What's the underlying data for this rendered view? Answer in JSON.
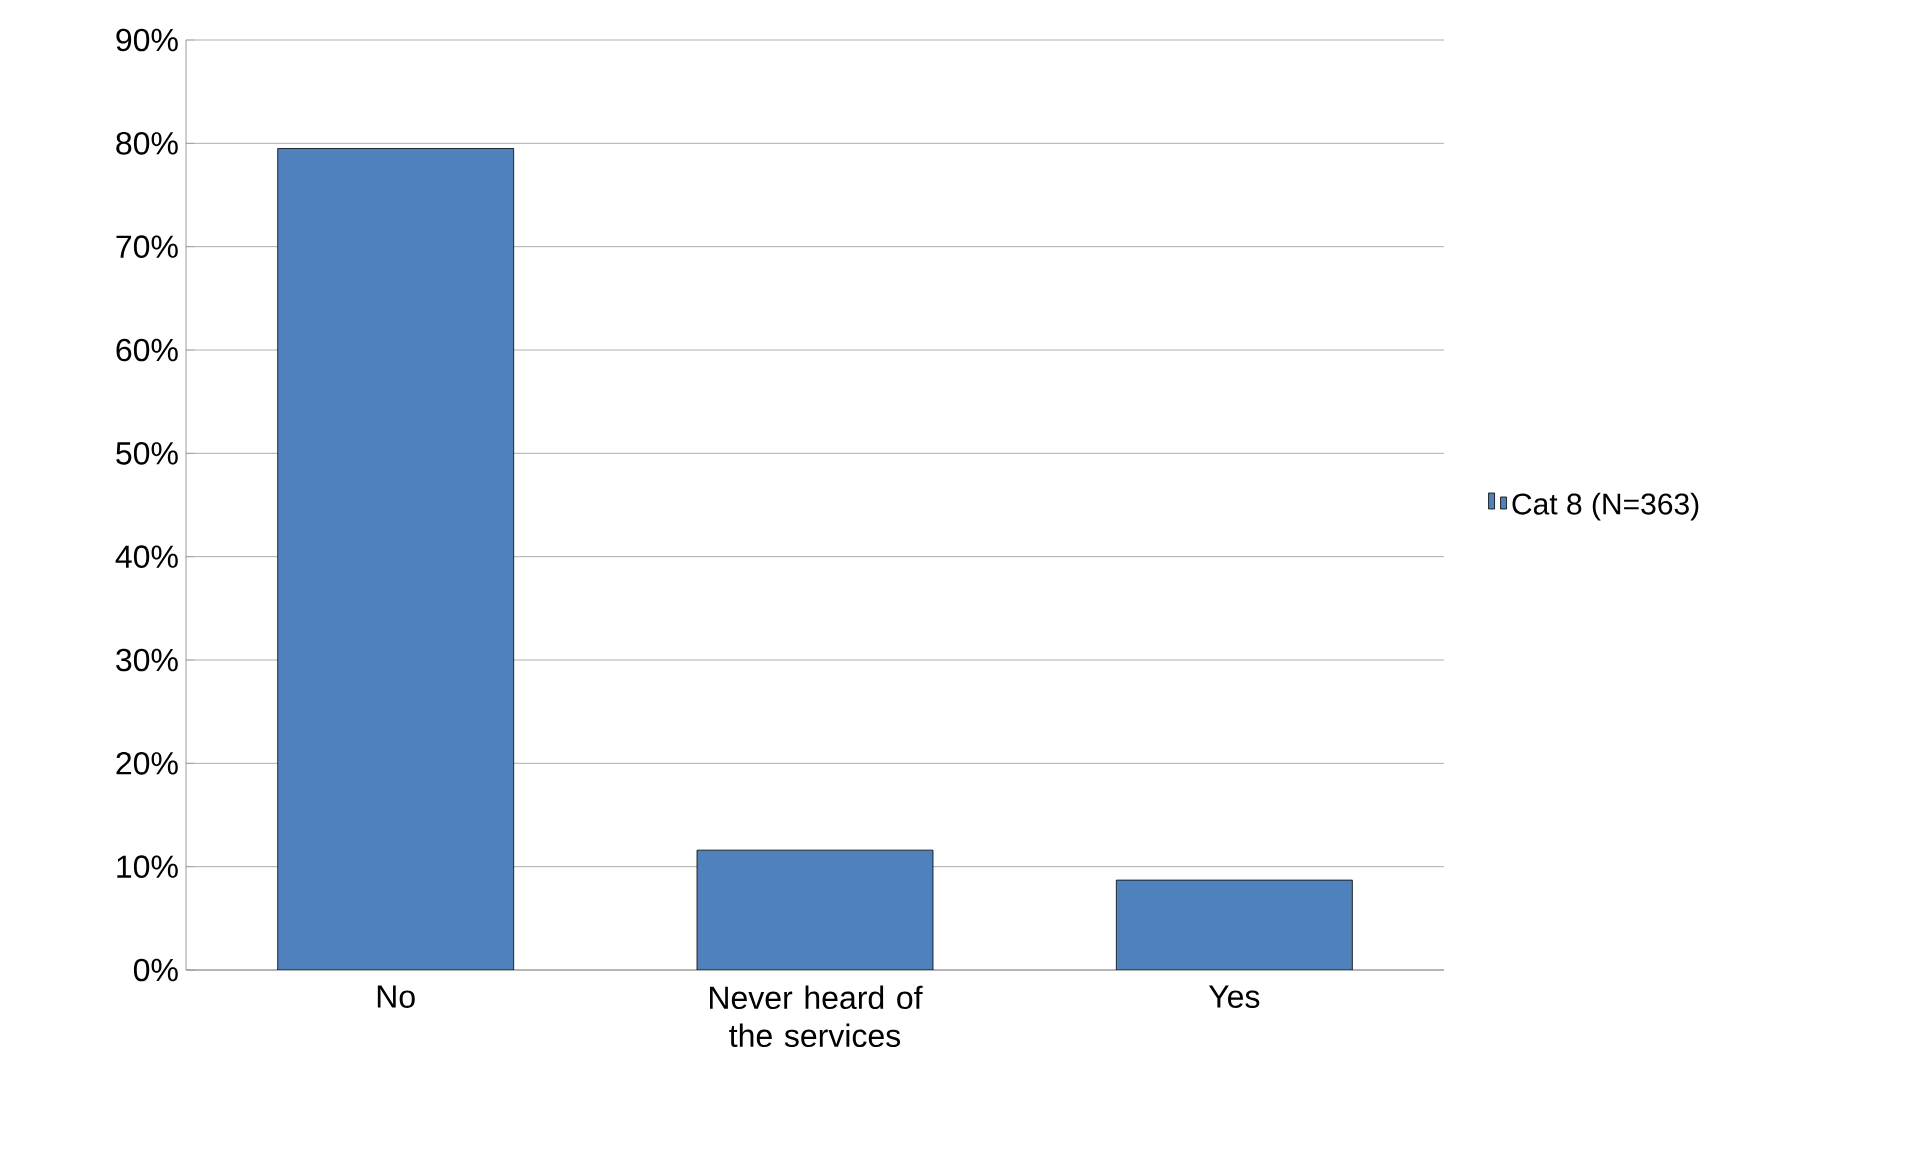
{
  "chart_data": {
    "type": "bar",
    "categories": [
      "No",
      "Never heard of the services",
      "Yes"
    ],
    "series": [
      {
        "name": "Cat 8  (N=363)",
        "color": "#4f81bd",
        "values": [
          79.5,
          11.6,
          8.7
        ]
      }
    ],
    "ylim": [
      0,
      90
    ],
    "yticks": [
      {
        "value": 0,
        "label": "0%"
      },
      {
        "value": 10,
        "label": "10%"
      },
      {
        "value": 20,
        "label": "20%"
      },
      {
        "value": 30,
        "label": "30%"
      },
      {
        "value": 40,
        "label": "40%"
      },
      {
        "value": 50,
        "label": "50%"
      },
      {
        "value": 60,
        "label": "60%"
      },
      {
        "value": 70,
        "label": "70%"
      },
      {
        "value": 80,
        "label": "80%"
      },
      {
        "value": 90,
        "label": "90%"
      }
    ],
    "grid": "y",
    "legend": "right"
  }
}
